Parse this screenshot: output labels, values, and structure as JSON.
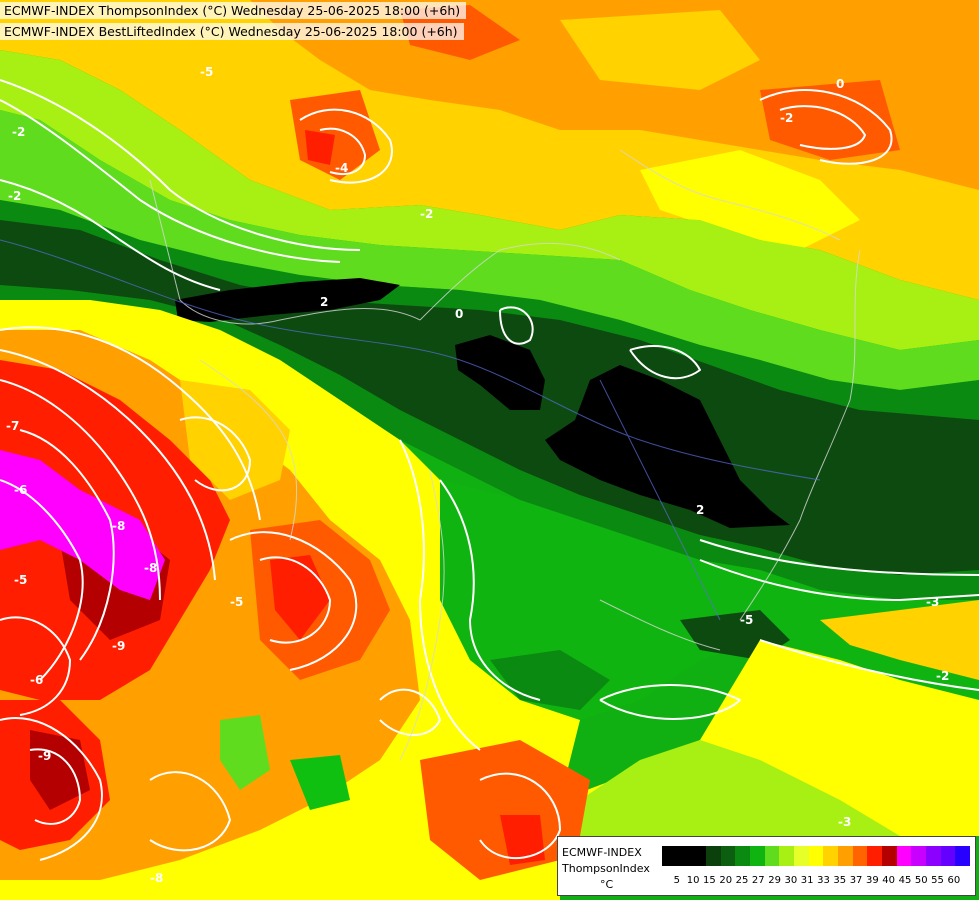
{
  "header": {
    "line1": "ECMWF-INDEX ThompsonIndex (°C) Wednesday 25-06-2025 18:00 (+6h)",
    "line2": "ECMWF-INDEX BestLiftedIndex (°C) Wednesday 25-06-2025 18:00 (+6h)"
  },
  "legend": {
    "title1": "ECMWF-INDEX",
    "title2": "ThompsonIndex",
    "unit": "°C",
    "ticks": [
      "5",
      "10",
      "15",
      "20",
      "25",
      "27",
      "29",
      "30",
      "31",
      "33",
      "35",
      "37",
      "39",
      "40",
      "45",
      "50",
      "55",
      "60"
    ],
    "colors": [
      "#000000",
      "#000000",
      "#000000",
      "#0b3f0b",
      "#0c5e10",
      "#0a8a10",
      "#10b410",
      "#5fdc1e",
      "#a8f014",
      "#e6ff28",
      "#ffff00",
      "#ffd200",
      "#ffa000",
      "#ff6400",
      "#ff1e00",
      "#b40000",
      "#ff00ff",
      "#c800ff",
      "#8c00ff",
      "#6400ff",
      "#2800ff"
    ]
  },
  "contour_labels": [
    "-2",
    "-2",
    "2",
    "0",
    "-4",
    "-5",
    "-2",
    "-7",
    "-6",
    "-8",
    "-9",
    "-9",
    "-5",
    "-8",
    "-6",
    "-5",
    "-8",
    "2",
    "-5",
    "-3",
    "-2",
    "-3",
    "0",
    "-2"
  ],
  "map_colors": {
    "darkest": "#000000",
    "dark_green": "#0c4a10",
    "green": "#0a8a10",
    "bright_green": "#10c010",
    "light_green": "#6fe01e",
    "lime": "#b4f014",
    "yellow": "#ffff00",
    "gold": "#ffd200",
    "orange": "#ffa000",
    "red_orange": "#ff5a00",
    "red": "#ff1e00",
    "dark_red": "#b40000",
    "magenta": "#ff00ff"
  }
}
